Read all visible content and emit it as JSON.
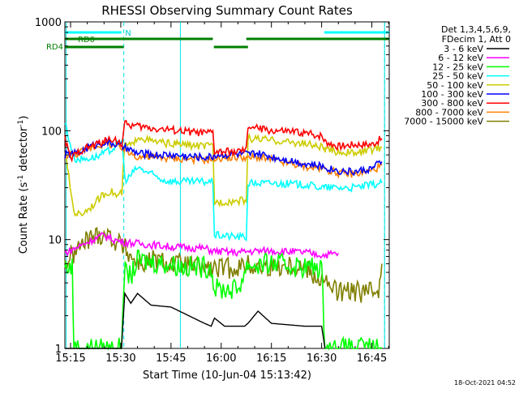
{
  "chart_data": {
    "type": "line",
    "title": "RHESSI Observing Summary Count Rates",
    "xlabel": "Start Time (10-Jun-04 15:13:42)",
    "ylabel": "Count Rate (s⁻¹ detector⁻¹)",
    "ylabel_parts": {
      "main": "Count Rate (s",
      "sup1": "-1",
      "mid": " detector",
      "sup2": "-1",
      "end": ")"
    },
    "y_scale": "log",
    "ylim": [
      1,
      1000
    ],
    "xlim_minutes": [
      -1.7,
      95.2
    ],
    "xtick_labels": [
      "15:15",
      "15:30",
      "15:45",
      "16:00",
      "16:15",
      "16:30",
      "16:45"
    ],
    "xtick_minutes": [
      0,
      15,
      30,
      45,
      60,
      75,
      90
    ],
    "ytick_labels": [
      "1",
      "10",
      "100",
      "1000"
    ],
    "ytick_values": [
      1,
      10,
      100,
      1000
    ],
    "legend_header": [
      "Det 1,3,4,5,6,9,",
      "FDecim 1, Att 0"
    ],
    "legend_position": "right",
    "footer_date": "18-Oct-2021 04:52",
    "vertical_markers_minutes": [
      -1.3,
      32.8,
      93.8
    ],
    "dashed_markers_minutes": [
      15.9,
      93.8
    ],
    "status_bars": [
      {
        "label": "N",
        "color": "#00ffff",
        "segments": [
          [
            -1.7,
            15.2
          ],
          [
            75.8,
            95.2
          ]
        ]
      },
      {
        "label": "RD0",
        "color": "#007f00",
        "segments": [
          [
            -1.7,
            42.5
          ],
          [
            52.5,
            95.2
          ]
        ]
      },
      {
        "label": "RD4",
        "color": "#007f00",
        "segments": [
          [
            -1.7,
            15.9
          ],
          [
            42.8,
            53.0
          ]
        ]
      }
    ],
    "series": [
      {
        "name": "3 - 6 keV",
        "color": "#000000",
        "x": [
          -1.7,
          15.2,
          16.2,
          18,
          20,
          24,
          30,
          40,
          42,
          43,
          46,
          52,
          53,
          56,
          60,
          70,
          75,
          76
        ],
        "y": [
          1,
          1,
          3.2,
          2.6,
          3.2,
          2.5,
          2.4,
          1.7,
          1.6,
          1.9,
          1.6,
          1.6,
          1.7,
          2.2,
          1.7,
          1.6,
          1.6,
          1
        ]
      },
      {
        "name": "6 - 12 keV",
        "color": "#ff00ff",
        "x": [
          -1.7,
          2,
          6,
          10,
          13,
          15.5,
          20,
          30,
          40,
          43,
          50,
          53,
          60,
          70,
          75.5,
          80
        ],
        "y": [
          7.5,
          8.5,
          9.8,
          11,
          10,
          9.5,
          9.2,
          8.6,
          8.3,
          7.8,
          7.6,
          7.8,
          7.9,
          7.6,
          7.2,
          7.5
        ]
      },
      {
        "name": "12 - 25 keV",
        "color": "#00ff00",
        "x": [
          -1.7,
          0.5,
          1,
          4,
          8,
          12,
          15.2,
          16,
          18,
          20,
          25,
          35,
          42,
          43,
          50,
          53,
          55,
          60,
          70,
          75,
          76,
          80,
          90,
          93
        ],
        "y": [
          5.6,
          5.6,
          1,
          1,
          1,
          1,
          1,
          5,
          4.6,
          6.4,
          6.2,
          5.6,
          5.6,
          3.5,
          3.5,
          6,
          5.8,
          6,
          5.6,
          5.5,
          1,
          1,
          1,
          1
        ]
      },
      {
        "name": "25 - 50 keV",
        "color": "#00ffff",
        "x": [
          -1.7,
          1,
          4,
          8,
          12,
          15.4,
          16.2,
          17,
          20,
          24,
          28,
          32,
          36,
          40,
          42.5,
          43,
          52.5,
          53,
          60,
          70,
          75.5,
          76,
          85,
          93
        ],
        "y": [
          120,
          55,
          55,
          58,
          66,
          82,
          36,
          36,
          46,
          40,
          35,
          34,
          34,
          34,
          34,
          11,
          10.5,
          33,
          33,
          32,
          30,
          30,
          30,
          33
        ]
      },
      {
        "name": "50 - 100 keV",
        "color": "#cccc00",
        "x": [
          -1.7,
          1,
          3,
          6,
          10,
          12,
          14,
          15.3,
          16.2,
          19,
          20,
          24,
          30,
          40,
          42.5,
          43,
          52.5,
          53,
          56,
          70,
          75.5,
          76,
          85,
          93
        ],
        "y": [
          65,
          18,
          17,
          20,
          26,
          28,
          25,
          27,
          74,
          74,
          90,
          80,
          76,
          72,
          72,
          22,
          23,
          85,
          84,
          76,
          70,
          66,
          62,
          70
        ]
      },
      {
        "name": "100 - 300 keV",
        "color": "#0000ff",
        "x": [
          -1.7,
          2,
          6,
          10,
          13,
          16,
          20,
          25,
          30,
          40,
          42.5,
          43,
          52.5,
          53,
          55,
          60,
          65,
          70,
          75,
          80,
          85,
          90,
          93
        ],
        "y": [
          60,
          62,
          72,
          78,
          76,
          70,
          62,
          60,
          60,
          57,
          58,
          60,
          61,
          60,
          62,
          58,
          54,
          50,
          47,
          43,
          42,
          45,
          52
        ]
      },
      {
        "name": "300 - 800 keV",
        "color": "#ff0000",
        "x": [
          -1.7,
          0,
          3,
          6,
          10,
          13,
          15.3,
          16.2,
          20,
          25,
          30,
          35,
          40,
          42.5,
          43,
          50,
          52.5,
          53,
          56,
          60,
          66,
          70,
          75,
          76,
          80,
          85,
          90,
          93
        ],
        "y": [
          85,
          55,
          66,
          72,
          80,
          85,
          75,
          115,
          110,
          105,
          102,
          98,
          95,
          96,
          64,
          64,
          66,
          110,
          105,
          100,
          98,
          95,
          90,
          80,
          72,
          75,
          75,
          85
        ]
      },
      {
        "name": "800 - 7000 keV",
        "color": "#ff7f00",
        "x": [
          -1.7,
          2,
          6,
          10,
          13,
          16,
          20,
          25,
          30,
          40,
          42.5,
          43,
          52.5,
          53,
          55,
          60,
          65,
          70,
          75,
          80,
          85,
          90,
          93
        ],
        "y": [
          60,
          62,
          70,
          76,
          74,
          66,
          58,
          57,
          56,
          54,
          55,
          56,
          57,
          55,
          58,
          54,
          50,
          47,
          45,
          41,
          40,
          43,
          48
        ]
      },
      {
        "name": "7000 - 15000 keV",
        "color": "#7f7f00",
        "x": [
          -1.7,
          2,
          5,
          10,
          13,
          16,
          18,
          20,
          22,
          25,
          30,
          35,
          40,
          43,
          50,
          53,
          56,
          60,
          65,
          70,
          75,
          80,
          85,
          90,
          92,
          93
        ],
        "y": [
          6,
          8,
          10,
          11.5,
          10,
          8.5,
          7,
          6.2,
          6,
          6.5,
          6,
          5.8,
          5.5,
          5.3,
          5.6,
          5.8,
          5.6,
          5.7,
          5.8,
          5.6,
          4.2,
          3.3,
          3.3,
          3.3,
          3.6,
          6
        ]
      }
    ]
  }
}
